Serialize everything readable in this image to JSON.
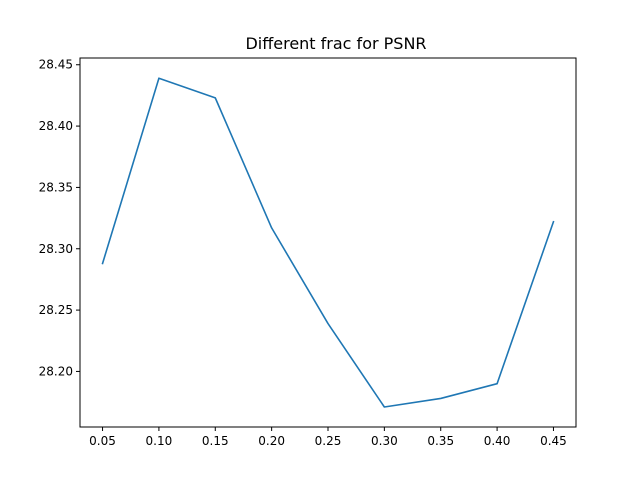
{
  "chart_data": {
    "type": "line",
    "title": "Different frac for PSNR",
    "xlabel": "",
    "ylabel": "",
    "x": [
      0.05,
      0.1,
      0.15,
      0.2,
      0.25,
      0.3,
      0.35,
      0.4,
      0.45
    ],
    "series": [
      {
        "values": [
          28.288,
          28.439,
          28.423,
          28.317,
          28.239,
          28.171,
          28.178,
          28.19,
          28.322
        ],
        "color": "#1f77b4"
      }
    ],
    "xlim": [
      0.03,
      0.47
    ],
    "ylim": [
      28.1547,
      28.4555
    ],
    "x_ticks": [
      0.05,
      0.1,
      0.15,
      0.2,
      0.25,
      0.3,
      0.35,
      0.4,
      0.45
    ],
    "x_tick_labels": [
      "0.05",
      "0.10",
      "0.15",
      "0.20",
      "0.25",
      "0.30",
      "0.35",
      "0.40",
      "0.45"
    ],
    "y_ticks": [
      28.2,
      28.25,
      28.3,
      28.35,
      28.4,
      28.45
    ],
    "y_tick_labels": [
      "28.20",
      "28.25",
      "28.30",
      "28.35",
      "28.40",
      "28.45"
    ],
    "grid": false,
    "legend": "none"
  }
}
